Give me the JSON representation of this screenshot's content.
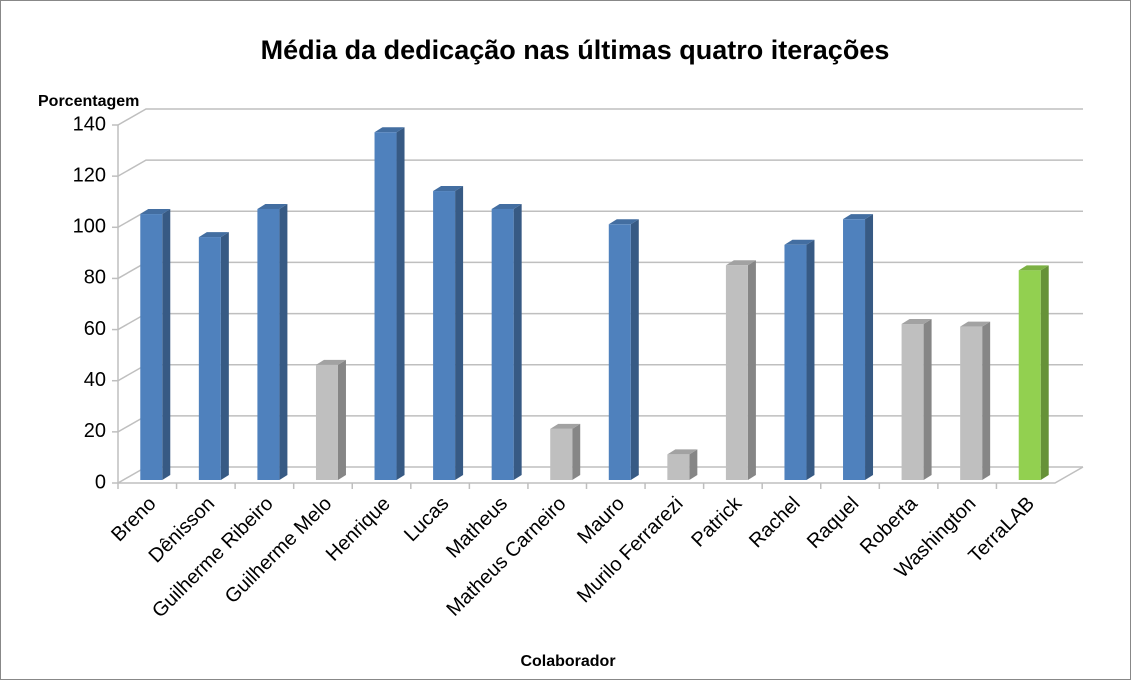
{
  "chart_data": {
    "type": "bar3d",
    "title": "Média da dedicação nas últimas quatro iterações",
    "y_label": "Porcentagem",
    "x_label": "Colaborador",
    "categories": [
      "Breno",
      "Dênisson",
      "Guilherme Ribeiro",
      "Guilherme Melo",
      "Henrique",
      "Lucas",
      "Matheus",
      "Matheus Carneiro",
      "Mauro",
      "Murilo Ferrarezi",
      "Patrick",
      "Rachel",
      "Raquel",
      "Roberta",
      "Washington",
      "TerraLAB"
    ],
    "values": [
      104,
      95,
      106,
      45,
      136,
      113,
      106,
      20,
      100,
      10,
      84,
      92,
      102,
      61,
      60,
      82
    ],
    "colors": [
      "#4f81bd",
      "#4f81bd",
      "#4f81bd",
      "#bfbfbf",
      "#4f81bd",
      "#4f81bd",
      "#4f81bd",
      "#bfbfbf",
      "#4f81bd",
      "#bfbfbf",
      "#bfbfbf",
      "#4f81bd",
      "#4f81bd",
      "#bfbfbf",
      "#bfbfbf",
      "#92d050"
    ],
    "ylim": [
      0,
      140
    ],
    "yticks": [
      0,
      20,
      40,
      60,
      80,
      100,
      120,
      140
    ],
    "grid": true
  }
}
